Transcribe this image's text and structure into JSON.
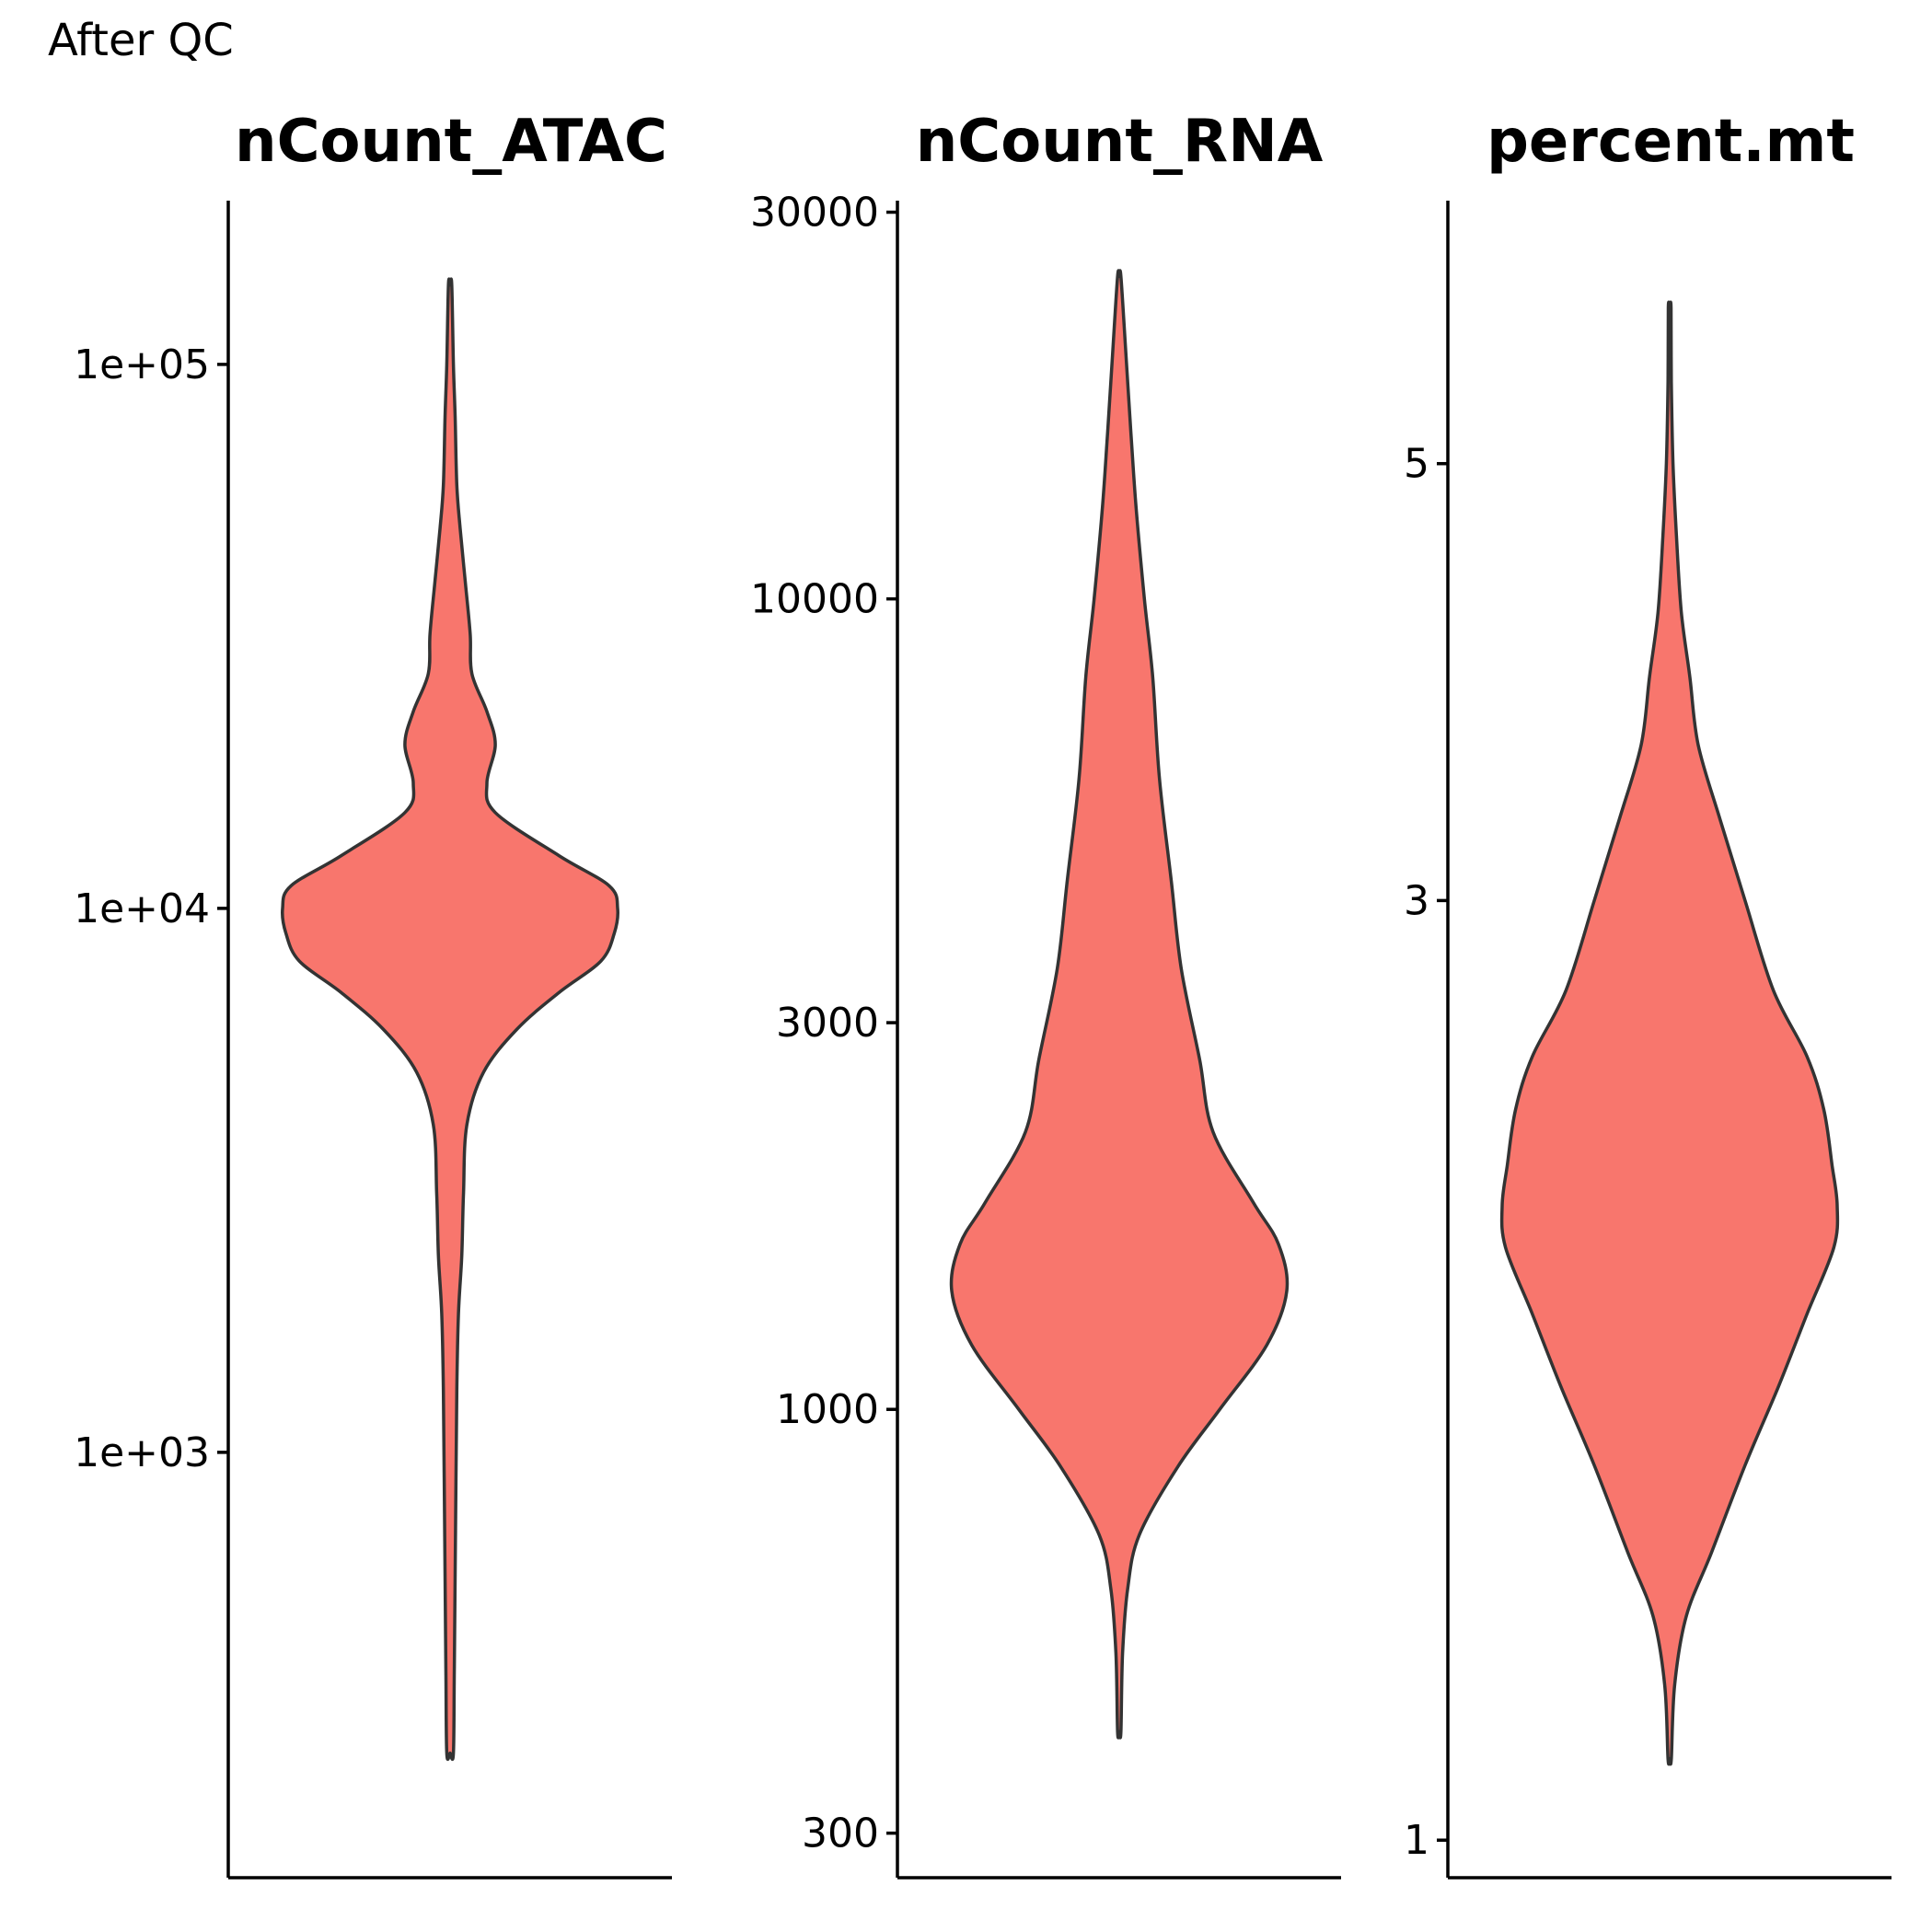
{
  "figure": {
    "title": "After QC"
  },
  "colors": {
    "violin_fill": "#F8766D",
    "violin_stroke": "#333333",
    "axis": "#000000"
  },
  "chart_data": [
    {
      "type": "violin",
      "title": "nCount_ATAC",
      "xlabel": "",
      "ylabel": "",
      "yscale": "log10",
      "ylim": [
        180,
        200000
      ],
      "yticks": [
        1000,
        10000,
        100000
      ],
      "ytick_labels": [
        "1e+03",
        "1e+04",
        "1e+05"
      ],
      "data_range": [
        280,
        140000
      ],
      "density": [
        {
          "y": 280,
          "w": 0.02
        },
        {
          "y": 400,
          "w": 0.025
        },
        {
          "y": 600,
          "w": 0.03
        },
        {
          "y": 900,
          "w": 0.035
        },
        {
          "y": 1300,
          "w": 0.04
        },
        {
          "y": 1800,
          "w": 0.05
        },
        {
          "y": 2300,
          "w": 0.07
        },
        {
          "y": 3000,
          "w": 0.08
        },
        {
          "y": 4000,
          "w": 0.1
        },
        {
          "y": 5000,
          "w": 0.2
        },
        {
          "y": 6000,
          "w": 0.4
        },
        {
          "y": 7000,
          "w": 0.65
        },
        {
          "y": 8000,
          "w": 0.9
        },
        {
          "y": 9000,
          "w": 0.98
        },
        {
          "y": 10000,
          "w": 1.0
        },
        {
          "y": 11000,
          "w": 0.95
        },
        {
          "y": 12500,
          "w": 0.65
        },
        {
          "y": 15000,
          "w": 0.27
        },
        {
          "y": 17000,
          "w": 0.22
        },
        {
          "y": 20000,
          "w": 0.27
        },
        {
          "y": 23000,
          "w": 0.22
        },
        {
          "y": 27000,
          "w": 0.13
        },
        {
          "y": 32000,
          "w": 0.12
        },
        {
          "y": 40000,
          "w": 0.09
        },
        {
          "y": 50000,
          "w": 0.06
        },
        {
          "y": 60000,
          "w": 0.04
        },
        {
          "y": 80000,
          "w": 0.03
        },
        {
          "y": 100000,
          "w": 0.02
        },
        {
          "y": 140000,
          "w": 0.01
        }
      ]
    },
    {
      "type": "violin",
      "title": "nCount_RNA",
      "xlabel": "",
      "ylabel": "",
      "yscale": "log10",
      "ylim": [
        280,
        31000
      ],
      "yticks": [
        300,
        1000,
        3000,
        10000,
        30000
      ],
      "ytick_labels": [
        "300",
        "1000",
        "3000",
        "10000",
        "30000"
      ],
      "data_range": [
        400,
        25000
      ],
      "density": [
        {
          "y": 400,
          "w": 0.01
        },
        {
          "y": 500,
          "w": 0.02
        },
        {
          "y": 600,
          "w": 0.05
        },
        {
          "y": 700,
          "w": 0.12
        },
        {
          "y": 850,
          "w": 0.35
        },
        {
          "y": 1000,
          "w": 0.6
        },
        {
          "y": 1200,
          "w": 0.88
        },
        {
          "y": 1400,
          "w": 1.0
        },
        {
          "y": 1600,
          "w": 0.95
        },
        {
          "y": 1800,
          "w": 0.8
        },
        {
          "y": 2200,
          "w": 0.56
        },
        {
          "y": 2700,
          "w": 0.48
        },
        {
          "y": 3500,
          "w": 0.37
        },
        {
          "y": 4500,
          "w": 0.31
        },
        {
          "y": 6000,
          "w": 0.24
        },
        {
          "y": 8000,
          "w": 0.2
        },
        {
          "y": 10000,
          "w": 0.15
        },
        {
          "y": 13000,
          "w": 0.1
        },
        {
          "y": 16000,
          "w": 0.07
        },
        {
          "y": 20000,
          "w": 0.04
        },
        {
          "y": 25000,
          "w": 0.01
        }
      ]
    },
    {
      "type": "violin",
      "title": "percent.mt",
      "xlabel": "",
      "ylabel": "",
      "yscale": "log10",
      "ylim": [
        0.98,
        6.8
      ],
      "yticks": [
        1,
        3,
        5
      ],
      "ytick_labels": [
        "1",
        "3",
        "5"
      ],
      "data_range": [
        1.1,
        6.0
      ],
      "density": [
        {
          "y": 1.1,
          "w": 0.01
        },
        {
          "y": 1.2,
          "w": 0.03
        },
        {
          "y": 1.3,
          "w": 0.1
        },
        {
          "y": 1.4,
          "w": 0.25
        },
        {
          "y": 1.55,
          "w": 0.45
        },
        {
          "y": 1.7,
          "w": 0.65
        },
        {
          "y": 1.85,
          "w": 0.82
        },
        {
          "y": 2.0,
          "w": 0.98
        },
        {
          "y": 2.1,
          "w": 1.0
        },
        {
          "y": 2.2,
          "w": 0.97
        },
        {
          "y": 2.35,
          "w": 0.92
        },
        {
          "y": 2.5,
          "w": 0.82
        },
        {
          "y": 2.7,
          "w": 0.62
        },
        {
          "y": 3.0,
          "w": 0.45
        },
        {
          "y": 3.3,
          "w": 0.3
        },
        {
          "y": 3.6,
          "w": 0.17
        },
        {
          "y": 3.9,
          "w": 0.12
        },
        {
          "y": 4.2,
          "w": 0.07
        },
        {
          "y": 4.6,
          "w": 0.04
        },
        {
          "y": 5.0,
          "w": 0.02
        },
        {
          "y": 5.5,
          "w": 0.01
        },
        {
          "y": 6.0,
          "w": 0.005
        }
      ]
    }
  ]
}
